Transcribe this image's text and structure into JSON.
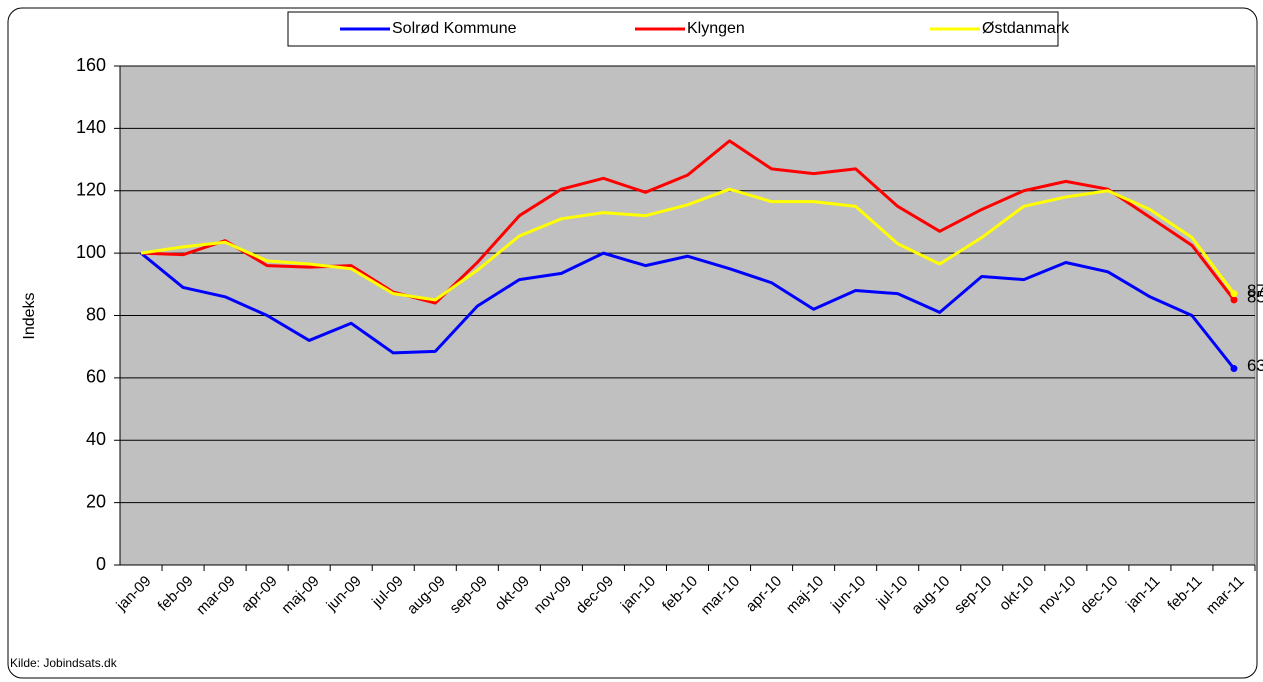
{
  "chart_data": {
    "type": "line",
    "categories": [
      "jan-09",
      "feb-09",
      "mar-09",
      "apr-09",
      "maj-09",
      "jun-09",
      "jul-09",
      "aug-09",
      "sep-09",
      "okt-09",
      "nov-09",
      "dec-09",
      "jan-10",
      "feb-10",
      "mar-10",
      "apr-10",
      "maj-10",
      "jun-10",
      "jul-10",
      "aug-10",
      "sep-10",
      "okt-10",
      "nov-10",
      "dec-10",
      "jan-11",
      "feb-11",
      "mar-11"
    ],
    "series": [
      {
        "name": "Solrød Kommune",
        "color": "#0000ff",
        "values": [
          100,
          89,
          86,
          80,
          72,
          77.5,
          68,
          68.5,
          83,
          91.5,
          93.5,
          100,
          96,
          99,
          95,
          90.5,
          82,
          88,
          87,
          81,
          92.5,
          91.5,
          97,
          94,
          86,
          80,
          63
        ]
      },
      {
        "name": "Klyngen",
        "color": "#ff0000",
        "values": [
          100,
          99.5,
          104,
          96,
          95.5,
          96,
          87.5,
          84,
          97,
          112,
          120.5,
          124,
          119.5,
          125,
          136,
          127,
          125.5,
          127,
          115,
          107,
          114,
          120,
          123,
          120.5,
          111.5,
          102.5,
          85
        ]
      },
      {
        "name": "Østdanmark",
        "color": "#ffff00",
        "values": [
          100,
          102,
          103.5,
          97.5,
          96.5,
          95,
          87,
          85,
          94.5,
          105.5,
          111,
          113,
          112,
          115.5,
          120.5,
          116.5,
          116.5,
          115,
          103,
          96.5,
          105,
          115,
          118,
          120,
          114,
          105,
          87
        ]
      }
    ],
    "ylabel": "Indeks",
    "ylim": [
      0,
      160
    ],
    "yticks": [
      0,
      20,
      40,
      60,
      80,
      100,
      120,
      140,
      160
    ],
    "grid": true,
    "end_labels": true,
    "legend": "top",
    "source": "Kilde: Jobindsats.dk"
  }
}
